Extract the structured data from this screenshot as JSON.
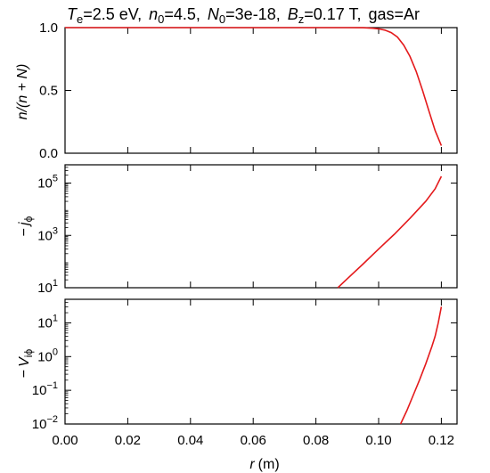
{
  "title": {
    "Te_symbol": "T",
    "Te_sub": "e",
    "Te_value": "=2.5 eV,",
    "n0_symbol": "n",
    "n0_sub": "0",
    "n0_value": "=4.5,",
    "N0_symbol": "N",
    "N0_sub": "0",
    "N0_value": "=3e-18,",
    "Bz_symbol": "B",
    "Bz_sub": "z",
    "Bz_value": "=0.17 T,",
    "gas": "gas=Ar"
  },
  "colors": {
    "line": "#e41a1c",
    "axes": "#000000",
    "background": "#ffffff"
  },
  "chart_data": [
    {
      "type": "line",
      "ylabel": {
        "italic_part": "n/(n + N)"
      },
      "xlim": [
        0,
        0.125
      ],
      "ylim": [
        0,
        1
      ],
      "yscale": "linear",
      "ytick_values": [
        0,
        0.5,
        1
      ],
      "ytick_labels": [
        "0.0",
        "0.5",
        "1.0"
      ],
      "grid": false,
      "legend": "none",
      "series": [
        {
          "x": [
            0.0,
            0.02,
            0.04,
            0.06,
            0.08,
            0.09,
            0.095,
            0.098,
            0.1,
            0.102,
            0.104,
            0.106,
            0.108,
            0.11,
            0.112,
            0.114,
            0.116,
            0.118,
            0.12
          ],
          "y": [
            1.0,
            1.0,
            1.0,
            1.0,
            1.0,
            1.0,
            0.999,
            0.995,
            0.99,
            0.98,
            0.96,
            0.925,
            0.86,
            0.77,
            0.65,
            0.5,
            0.34,
            0.18,
            0.06
          ]
        }
      ]
    },
    {
      "type": "line",
      "ylabel": {
        "prefix": "−",
        "symbol": "j",
        "sub": "ϕ"
      },
      "xlim": [
        0,
        0.125
      ],
      "ylim": [
        10,
        500000
      ],
      "yscale": "log",
      "ytick_values": [
        10,
        1000,
        100000
      ],
      "ytick_labels": [
        {
          "base": "10",
          "exp": "1"
        },
        {
          "base": "10",
          "exp": "3"
        },
        {
          "base": "10",
          "exp": "5"
        }
      ],
      "grid": false,
      "legend": "none",
      "series": [
        {
          "x": [
            0.087,
            0.09,
            0.095,
            0.1,
            0.105,
            0.11,
            0.115,
            0.118,
            0.12
          ],
          "y": [
            10,
            22,
            80,
            300,
            1100,
            4500,
            20000,
            60000,
            180000
          ]
        }
      ]
    },
    {
      "type": "line",
      "ylabel": {
        "prefix": "−",
        "symbol": "V",
        "sub": "iϕ"
      },
      "xlim": [
        0,
        0.125
      ],
      "ylim": [
        0.01,
        50
      ],
      "yscale": "log",
      "ytick_values": [
        0.01,
        0.1,
        1,
        10
      ],
      "ytick_labels": [
        {
          "base": "10",
          "exp": "−2"
        },
        {
          "base": "10",
          "exp": "−1"
        },
        {
          "base": "10",
          "exp": "0"
        },
        {
          "base": "10",
          "exp": "1"
        }
      ],
      "grid": false,
      "legend": "none",
      "series": [
        {
          "x": [
            0.107,
            0.109,
            0.111,
            0.113,
            0.115,
            0.117,
            0.118,
            0.119,
            0.12
          ],
          "y": [
            0.01,
            0.025,
            0.07,
            0.2,
            0.6,
            2.0,
            4.0,
            10,
            30
          ]
        }
      ]
    }
  ],
  "xaxis": {
    "tick_values": [
      0.0,
      0.02,
      0.04,
      0.06,
      0.08,
      0.1,
      0.12
    ],
    "tick_labels": [
      "0.00",
      "0.02",
      "0.04",
      "0.06",
      "0.08",
      "0.10",
      "0.12"
    ],
    "label_symbol": "r",
    "label_unit": "(m)"
  }
}
